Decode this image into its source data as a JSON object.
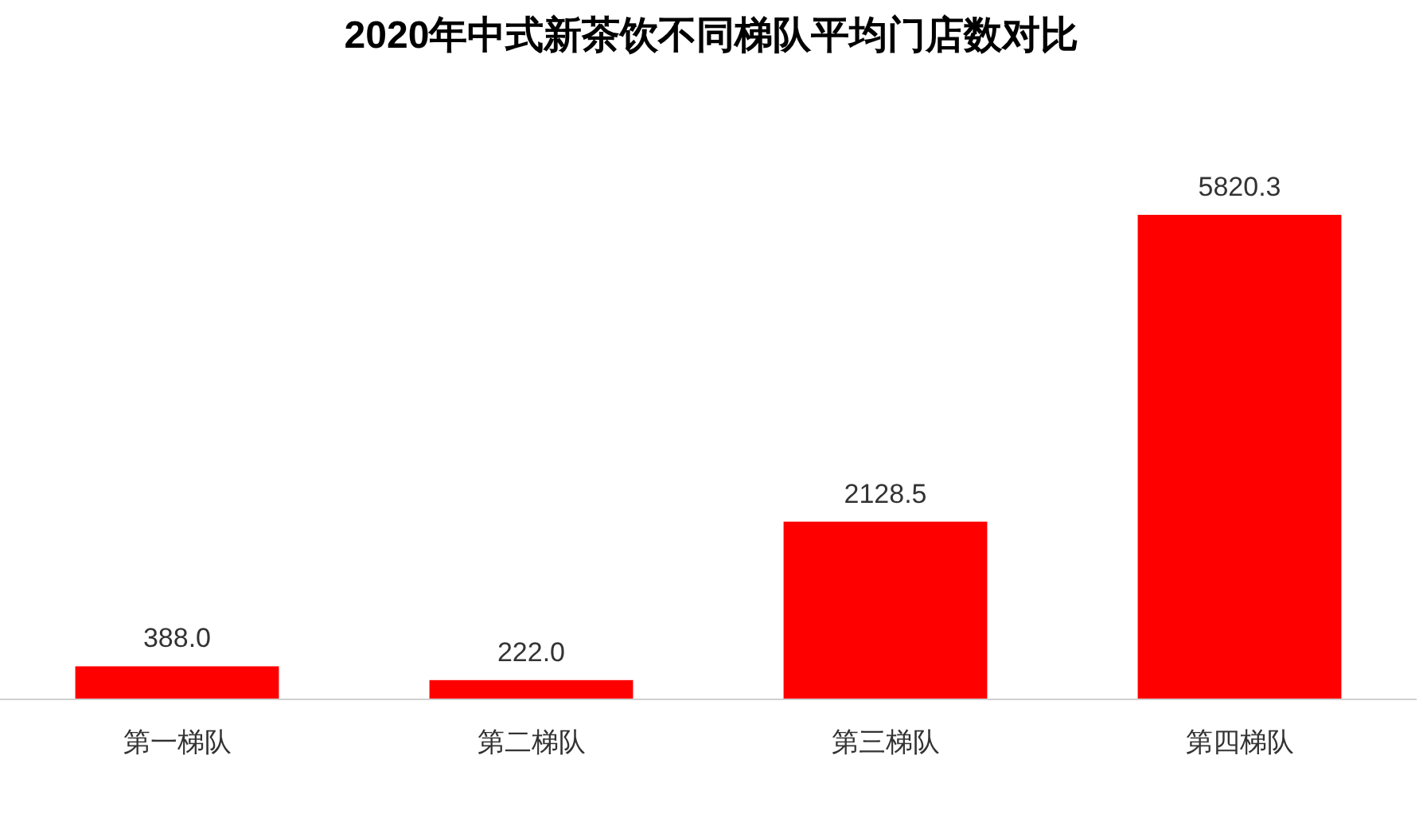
{
  "chart_data": {
    "type": "bar",
    "title": "2020年中式新茶饮不同梯队平均门店数对比",
    "categories": [
      "第一梯队",
      "第二梯队",
      "第三梯队",
      "第四梯队"
    ],
    "values": [
      388.0,
      222.0,
      2128.5,
      5820.3
    ],
    "value_labels": [
      "388.0",
      "222.0",
      "2128.5",
      "5820.3"
    ],
    "color": "#ff0000"
  }
}
